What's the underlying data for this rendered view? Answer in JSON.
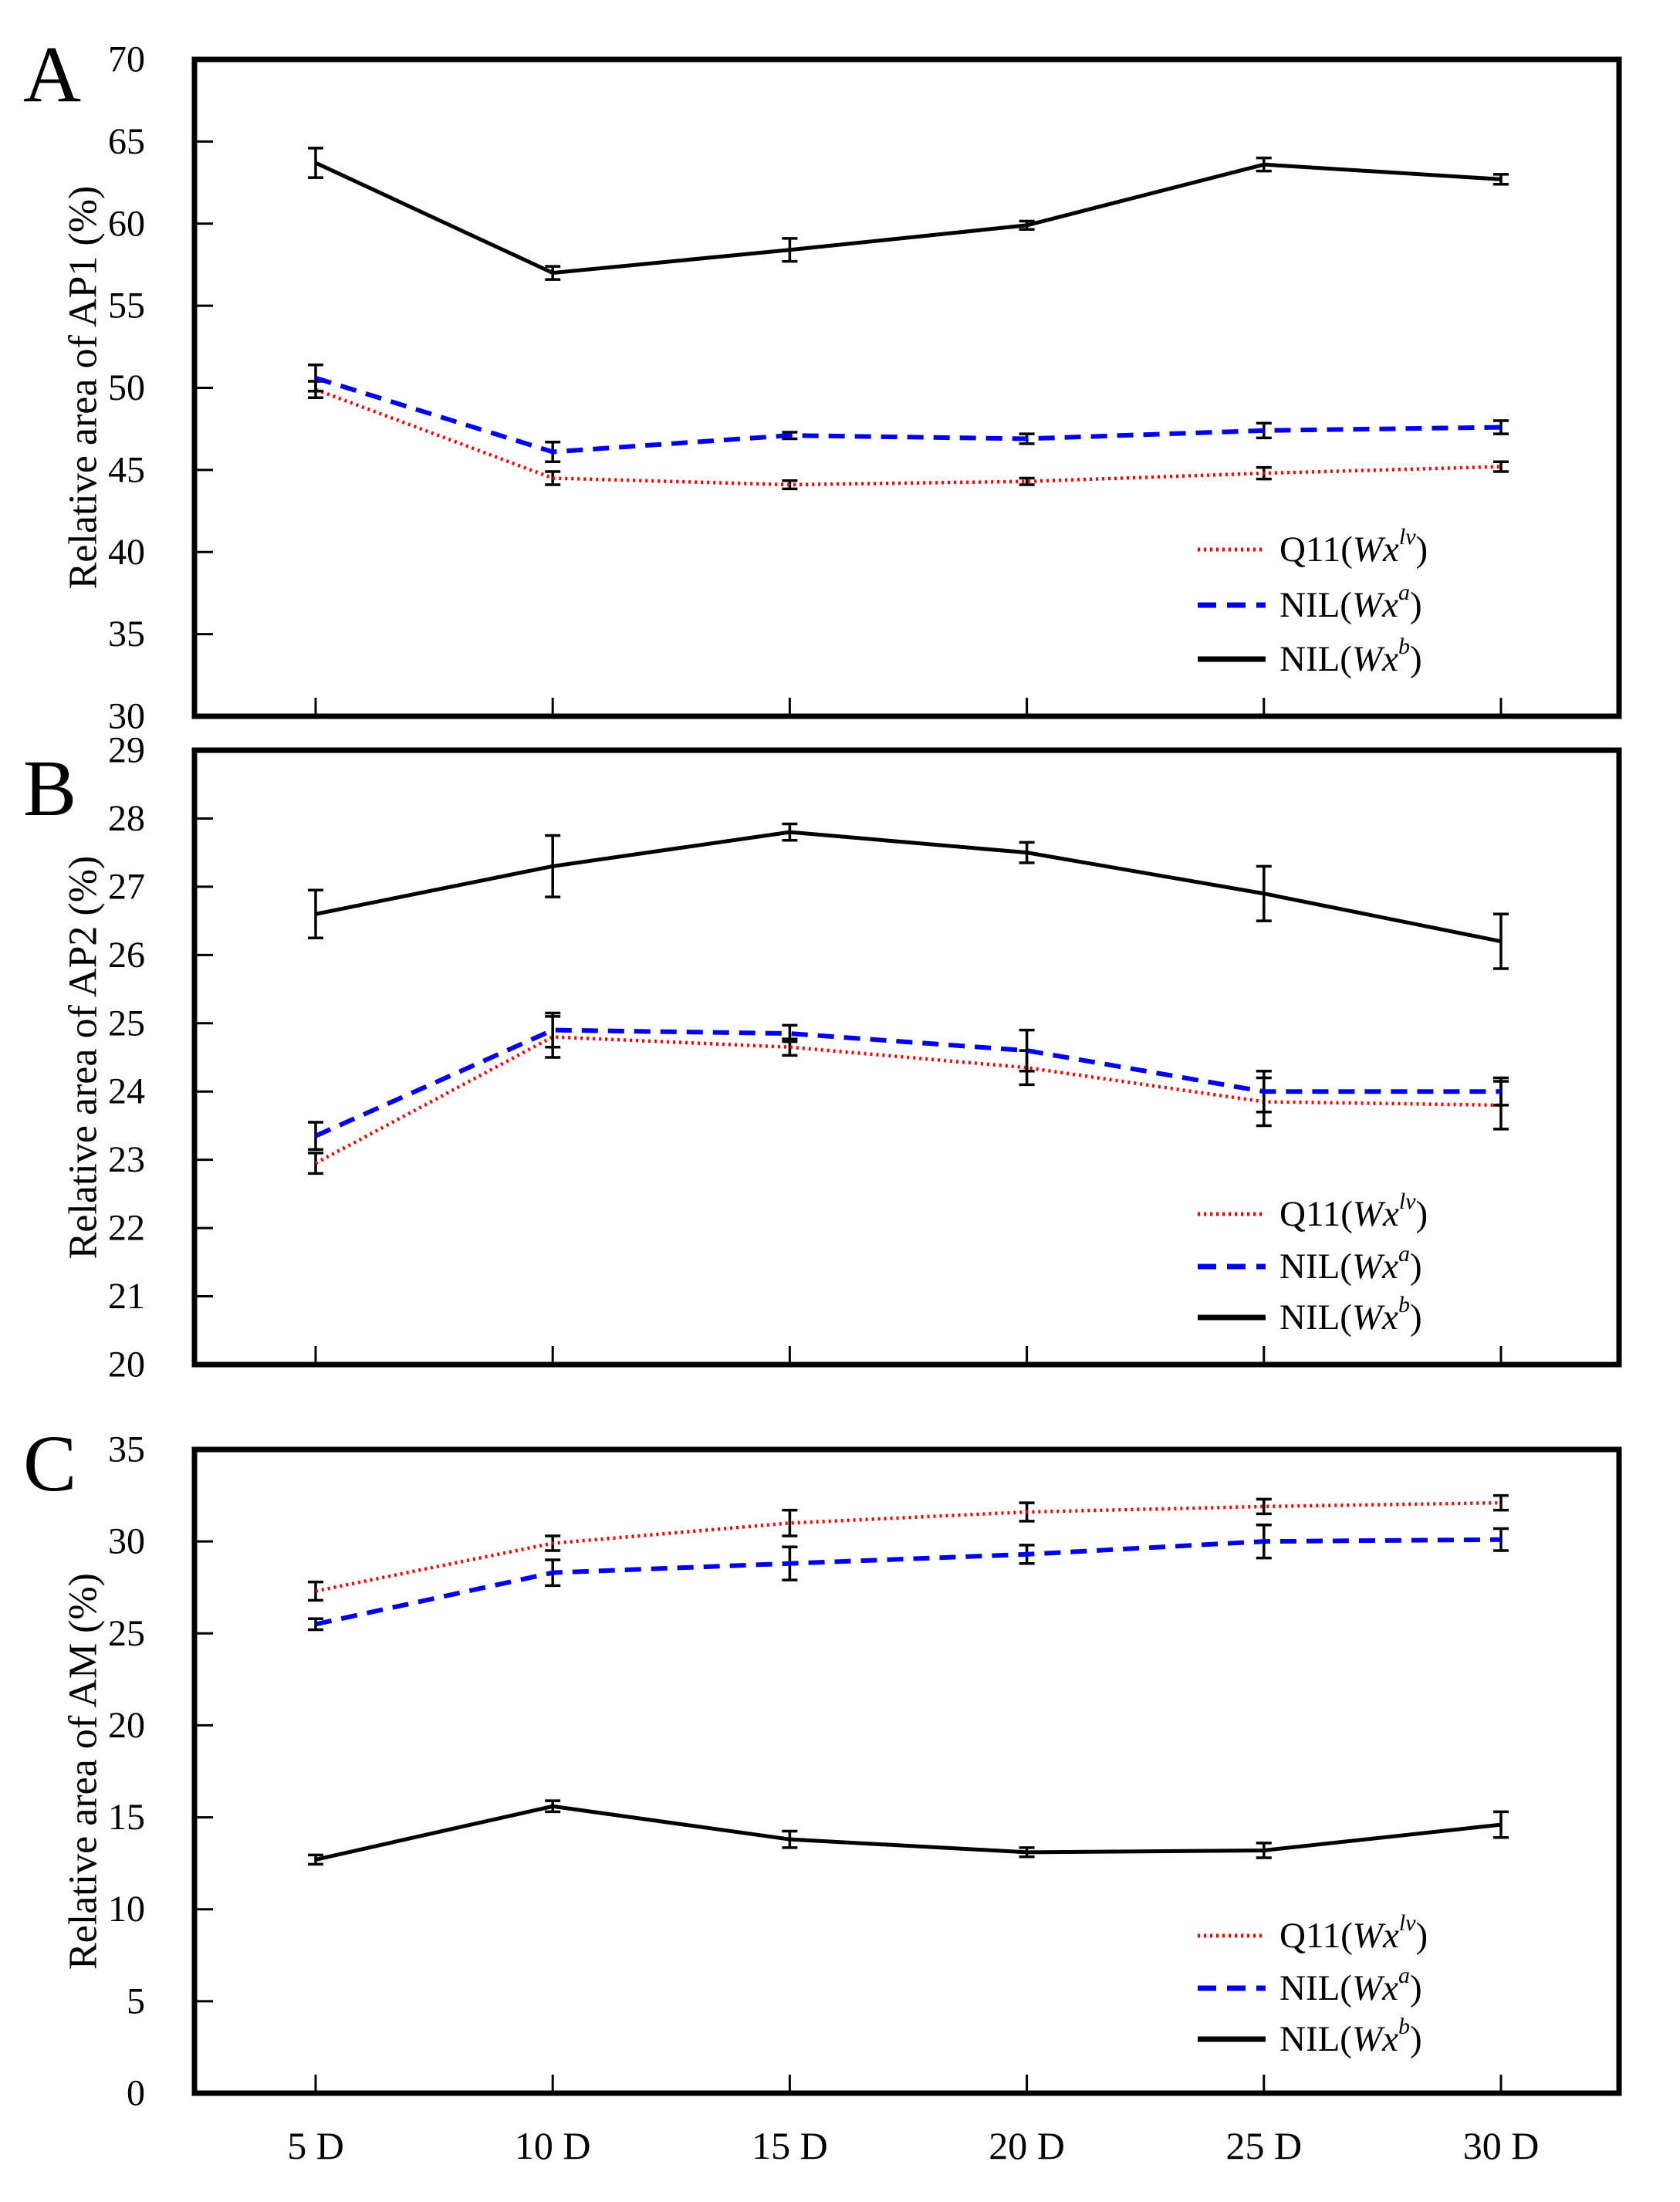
{
  "figure": {
    "x_axis_labels": [
      "5 D",
      "10 D",
      "15 D",
      "20 D",
      "25 D",
      "30 D"
    ]
  },
  "chart_data": [
    {
      "type": "line",
      "panel_label": "A",
      "title": "",
      "xlabel": "",
      "ylabel": "Relative area of AP1 (%)",
      "ylim": [
        30,
        70
      ],
      "ytick_step": 5,
      "grid": false,
      "legend_position": "inside-right-middle",
      "x_categories": [
        "5 D",
        "10 D",
        "15 D",
        "20 D",
        "25 D",
        "30 D"
      ],
      "series": [
        {
          "name": "Q11(Wx^lv)",
          "label_parts": {
            "prefix": "Q11(",
            "gene": "Wx",
            "sup": "lv",
            "suffix": ")"
          },
          "color": "#ff0000",
          "line_style": "dotted",
          "values": [
            49.9,
            44.5,
            44.1,
            44.3,
            44.8,
            45.2
          ],
          "errors": [
            0.5,
            0.4,
            0.25,
            0.2,
            0.35,
            0.3
          ]
        },
        {
          "name": "NIL(Wx^a)",
          "label_parts": {
            "prefix": "NIL(",
            "gene": "Wx",
            "sup": "a",
            "suffix": ")"
          },
          "color": "#0000ee",
          "line_style": "dashed",
          "values": [
            50.6,
            46.1,
            47.1,
            46.9,
            47.4,
            47.6
          ],
          "errors": [
            0.8,
            0.6,
            0.2,
            0.3,
            0.45,
            0.4
          ]
        },
        {
          "name": "NIL(Wx^b)",
          "label_parts": {
            "prefix": "NIL(",
            "gene": "Wx",
            "sup": "b",
            "suffix": ")"
          },
          "color": "#000000",
          "line_style": "solid",
          "values": [
            63.7,
            57.0,
            58.4,
            59.9,
            63.6,
            62.7
          ],
          "errors": [
            0.9,
            0.4,
            0.7,
            0.25,
            0.4,
            0.3
          ]
        }
      ]
    },
    {
      "type": "line",
      "panel_label": "B",
      "title": "",
      "xlabel": "",
      "ylabel": "Relative area of AP2 (%)",
      "ylim": [
        20,
        29
      ],
      "ytick_step": 1,
      "grid": false,
      "legend_position": "inside-right-middle",
      "x_categories": [
        "5 D",
        "10 D",
        "15 D",
        "20 D",
        "25 D",
        "30 D"
      ],
      "series": [
        {
          "name": "Q11(Wx^lv)",
          "label_parts": {
            "prefix": "Q11(",
            "gene": "Wx",
            "sup": "lv",
            "suffix": ")"
          },
          "color": "#ff0000",
          "line_style": "dotted",
          "values": [
            22.95,
            24.8,
            24.65,
            24.35,
            23.85,
            23.8
          ],
          "errors": [
            0.15,
            0.3,
            0.12,
            0.25,
            0.35,
            0.35
          ]
        },
        {
          "name": "NIL(Wx^a)",
          "label_parts": {
            "prefix": "NIL(",
            "gene": "Wx",
            "sup": "a",
            "suffix": ")"
          },
          "color": "#0000ee",
          "line_style": "dashed",
          "values": [
            23.35,
            24.9,
            24.85,
            24.6,
            24.0,
            24.0
          ],
          "errors": [
            0.2,
            0.25,
            0.12,
            0.3,
            0.3,
            0.2
          ]
        },
        {
          "name": "NIL(Wx^b)",
          "label_parts": {
            "prefix": "NIL(",
            "gene": "Wx",
            "sup": "b",
            "suffix": ")"
          },
          "color": "#000000",
          "line_style": "solid",
          "values": [
            26.6,
            27.3,
            27.8,
            27.5,
            26.9,
            26.2
          ],
          "errors": [
            0.35,
            0.45,
            0.12,
            0.15,
            0.4,
            0.4
          ]
        }
      ]
    },
    {
      "type": "line",
      "panel_label": "C",
      "title": "",
      "xlabel": "",
      "ylabel": "Relative area of AM (%)",
      "ylim": [
        0,
        35
      ],
      "ytick_step": 5,
      "grid": false,
      "legend_position": "inside-right-bottom",
      "x_categories": [
        "5 D",
        "10 D",
        "15 D",
        "20 D",
        "25 D",
        "30 D"
      ],
      "series": [
        {
          "name": "Q11(Wx^lv)",
          "label_parts": {
            "prefix": "Q11(",
            "gene": "Wx",
            "sup": "lv",
            "suffix": ")"
          },
          "color": "#ff0000",
          "line_style": "dotted",
          "values": [
            27.3,
            29.9,
            31.0,
            31.6,
            31.9,
            32.1
          ],
          "errors": [
            0.5,
            0.4,
            0.7,
            0.5,
            0.4,
            0.4
          ]
        },
        {
          "name": "NIL(Wx^a)",
          "label_parts": {
            "prefix": "NIL(",
            "gene": "Wx",
            "sup": "a",
            "suffix": ")"
          },
          "color": "#0000ee",
          "line_style": "dashed",
          "values": [
            25.5,
            28.3,
            28.8,
            29.3,
            30.0,
            30.1
          ],
          "errors": [
            0.3,
            0.7,
            0.9,
            0.5,
            0.9,
            0.6
          ]
        },
        {
          "name": "NIL(Wx^b)",
          "label_parts": {
            "prefix": "NIL(",
            "gene": "Wx",
            "sup": "b",
            "suffix": ")"
          },
          "color": "#000000",
          "line_style": "solid",
          "values": [
            12.7,
            15.6,
            13.8,
            13.1,
            13.2,
            14.6
          ],
          "errors": [
            0.25,
            0.3,
            0.45,
            0.25,
            0.4,
            0.7
          ]
        }
      ]
    }
  ]
}
